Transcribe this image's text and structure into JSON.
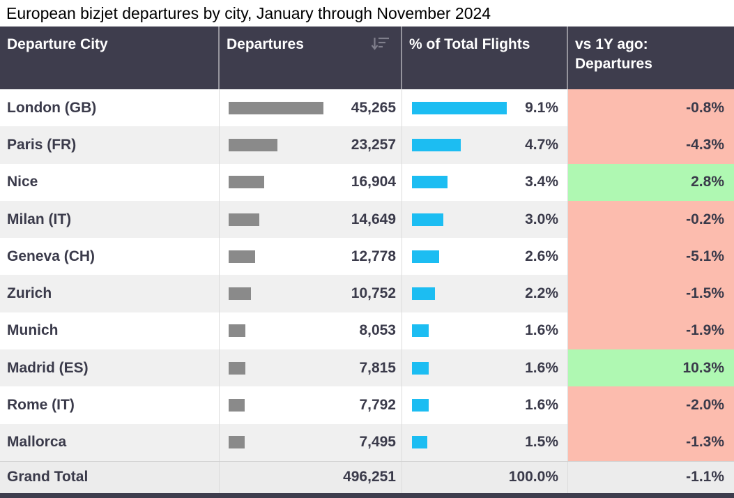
{
  "title": "European bizjet departures by city, January through November 2024",
  "colors": {
    "header_bg": "#3e3d4d",
    "header_text": "#ffffff",
    "body_text": "#3a3a4a",
    "row_bg": "#ffffff",
    "row_alt_bg": "#f0f0f0",
    "gray_bar": "#8a8a8a",
    "blue_bar": "#1cbdf2",
    "negative_bg": "#fcbcae",
    "positive_bg": "#aff8b2",
    "total_row_bg": "#ececec",
    "footer_bar": "#3e3d4d"
  },
  "table": {
    "columns": [
      {
        "label": "Departure City"
      },
      {
        "label": "Departures",
        "icon": "sort-descending"
      },
      {
        "label": "% of Total Flights"
      },
      {
        "label": "vs 1Y ago: Departures"
      }
    ],
    "rows": [
      {
        "city": "London (GB)",
        "departures": "45,265",
        "departures_value": 45265,
        "pct_total": "9.1%",
        "pct_value": 9.1,
        "yoy": "-0.8%",
        "yoy_value": -0.8
      },
      {
        "city": "Paris (FR)",
        "departures": "23,257",
        "departures_value": 23257,
        "pct_total": "4.7%",
        "pct_value": 4.7,
        "yoy": "-4.3%",
        "yoy_value": -4.3
      },
      {
        "city": "Nice",
        "departures": "16,904",
        "departures_value": 16904,
        "pct_total": "3.4%",
        "pct_value": 3.4,
        "yoy": "2.8%",
        "yoy_value": 2.8
      },
      {
        "city": "Milan (IT)",
        "departures": "14,649",
        "departures_value": 14649,
        "pct_total": "3.0%",
        "pct_value": 3.0,
        "yoy": "-0.2%",
        "yoy_value": -0.2
      },
      {
        "city": "Geneva (CH)",
        "departures": "12,778",
        "departures_value": 12778,
        "pct_total": "2.6%",
        "pct_value": 2.6,
        "yoy": "-5.1%",
        "yoy_value": -5.1
      },
      {
        "city": "Zurich",
        "departures": "10,752",
        "departures_value": 10752,
        "pct_total": "2.2%",
        "pct_value": 2.2,
        "yoy": "-1.5%",
        "yoy_value": -1.5
      },
      {
        "city": "Munich",
        "departures": "8,053",
        "departures_value": 8053,
        "pct_total": "1.6%",
        "pct_value": 1.6,
        "yoy": "-1.9%",
        "yoy_value": -1.9
      },
      {
        "city": "Madrid (ES)",
        "departures": "7,815",
        "departures_value": 7815,
        "pct_total": "1.6%",
        "pct_value": 1.6,
        "yoy": "10.3%",
        "yoy_value": 10.3
      },
      {
        "city": "Rome (IT)",
        "departures": "7,792",
        "departures_value": 7792,
        "pct_total": "1.6%",
        "pct_value": 1.6,
        "yoy": "-2.0%",
        "yoy_value": -2.0
      },
      {
        "city": "Mallorca",
        "departures": "7,495",
        "departures_value": 7495,
        "pct_total": "1.5%",
        "pct_value": 1.5,
        "yoy": "-1.3%",
        "yoy_value": -1.3
      }
    ],
    "grand_total": {
      "label": "Grand Total",
      "departures": "496,251",
      "pct_total": "100.0%",
      "yoy": "-1.1%"
    }
  },
  "chart_data": {
    "type": "table",
    "title": "European bizjet departures by city, January through November 2024",
    "columns": [
      "Departure City",
      "Departures",
      "% of Total Flights",
      "vs 1Y ago: Departures"
    ],
    "rows": [
      [
        "London (GB)",
        45265,
        9.1,
        -0.8
      ],
      [
        "Paris (FR)",
        23257,
        4.7,
        -4.3
      ],
      [
        "Nice",
        16904,
        3.4,
        2.8
      ],
      [
        "Milan (IT)",
        14649,
        3.0,
        -0.2
      ],
      [
        "Geneva (CH)",
        12778,
        2.6,
        -5.1
      ],
      [
        "Zurich",
        10752,
        2.2,
        -1.5
      ],
      [
        "Munich",
        8053,
        1.6,
        -1.9
      ],
      [
        "Madrid (ES)",
        7815,
        1.6,
        10.3
      ],
      [
        "Rome (IT)",
        7792,
        1.6,
        -2.0
      ],
      [
        "Mallorca",
        7495,
        1.5,
        -1.3
      ]
    ],
    "grand_total": [
      "Grand Total",
      496251,
      100.0,
      -1.1
    ],
    "layout_hints": "Departures column has gray in-cell data bars; % of Total Flights has cyan data bars; vs 1Y ago cells are salmon when negative and light green when positive; Departures column sorted descending"
  }
}
